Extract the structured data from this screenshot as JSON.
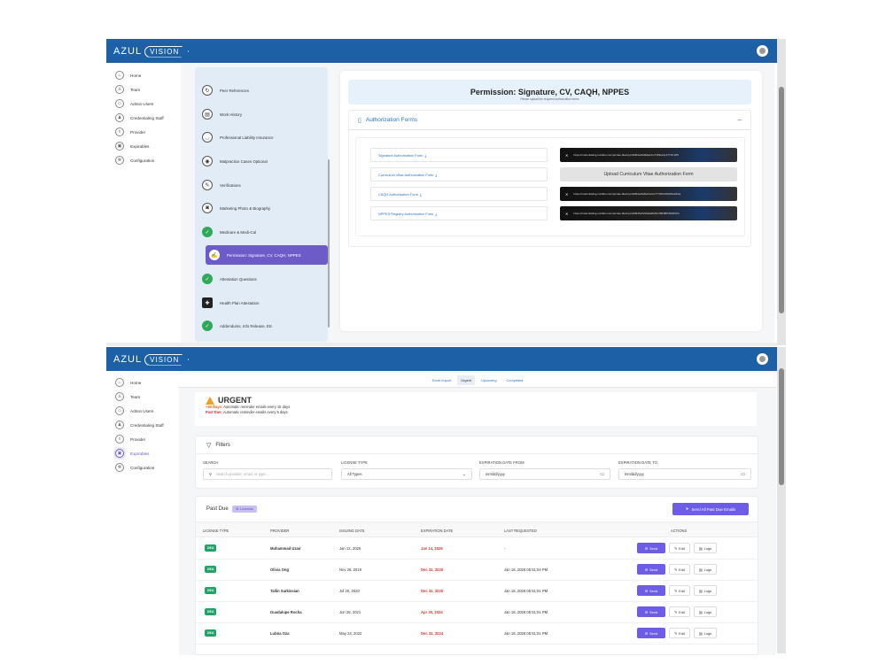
{
  "brand": {
    "azul": "AZUL",
    "vision": "VISION"
  },
  "nav": {
    "items": [
      {
        "label": "Home",
        "icon": "home-icon"
      },
      {
        "label": "Team",
        "icon": "team-icon"
      },
      {
        "label": "Admin Users",
        "icon": "shield-icon"
      },
      {
        "label": "Credentialing Staff",
        "icon": "users-icon"
      },
      {
        "label": "Provider",
        "icon": "provider-icon"
      },
      {
        "label": "Expirables",
        "icon": "expirables-icon"
      },
      {
        "label": "Configuration",
        "icon": "gear-icon"
      }
    ]
  },
  "steps": [
    {
      "label": "Peer References"
    },
    {
      "label": "Work History"
    },
    {
      "label": "Professional Liability Insurance"
    },
    {
      "label": "Malpractice Cases Optional"
    },
    {
      "label": "Verifications"
    },
    {
      "label": "Marketing Photo & Biography"
    },
    {
      "label": "Medicare & Medi-Cal"
    },
    {
      "label": "Permission: Signature, CV, CAQH, NPPES"
    },
    {
      "label": "Attestation Questions"
    },
    {
      "label": "Health Plan Attestation"
    },
    {
      "label": "Addendums, Info Release, Etc"
    }
  ],
  "permission": {
    "title": "Permission: Signature, CV, CAQH, NPPES",
    "subtitle": "Please upload the required authorization forms",
    "section_title": "Authorization Forms",
    "collapse": "–",
    "forms": [
      {
        "label": "Signature Authorization Form",
        "value": "https://credentialing.confidio.com/private-files/xyz/a6f0de49d9da/sCuYWtfe16yJ?716.205"
      },
      {
        "label": "Curriculum Vitae Authorization Form",
        "value": "Upload Curriculum Vitae Authorization Form"
      },
      {
        "label": "CAQH Authorization Form",
        "value": "https://credentialing.confidio.com/private-files/xyz/a6f0de49d0a/YeGC7Y3f%CRb29Gd/4Ga"
      },
      {
        "label": "NPPES Registry Authorization Form",
        "value": "https://credentialing.confidio.com/private-files/xyz/a6f0d6e5c9/0ad2b26c4f9f4852NS9NCh"
      }
    ]
  },
  "tabs": [
    "Excel Import",
    "Urgent",
    "Upcoming",
    "Completed"
  ],
  "urgent": {
    "title": "URGENT",
    "line1_key": "+30 Days:",
    "line1_val": "Automatic reminder emails every 15 days",
    "line2_key": "Past Due:",
    "line2_val": "Automatic reminder emails every 5 days"
  },
  "filters": {
    "title": "Filters",
    "search_label": "SEARCH",
    "search_placeholder": "Search provider, email, or type...",
    "license_label": "LICENSE TYPE",
    "license_value": "All Types",
    "from_label": "EXPIRATION DATE FROM",
    "from_value": "mm/dd/yyyy",
    "to_label": "EXPIRATION DATE TO",
    "to_value": "mm/dd/yyyy"
  },
  "pastdue": {
    "title": "Past Due",
    "count_badge": "31 Licenses",
    "send_all": "Send All Past Due Emails",
    "columns": [
      "LICENSE TYPE",
      "PROVIDER",
      "ISSUING DATE",
      "EXPIRATION DATE",
      "LAST REQUESTED",
      "ACTIONS"
    ],
    "send_label": "Send",
    "edit_label": "Edit",
    "logs_label": "Logs",
    "rows": [
      {
        "type": "DEA",
        "provider": "Muhammad Uzair",
        "issuing": "Jan 12, 2026",
        "expiration": "Jan 14, 2026",
        "last": "-"
      },
      {
        "type": "DEA",
        "provider": "Olivia Ong",
        "issuing": "Nov 26, 2019",
        "expiration": "Dec 31, 2025",
        "last": "Jan 18, 2026 05:51:04 PM"
      },
      {
        "type": "DEA",
        "provider": "Tallin Sarkissian",
        "issuing": "Jul 20, 2020",
        "expiration": "Dec 31, 2025",
        "last": "Jan 18, 2026 05:51:01 PM"
      },
      {
        "type": "DEA",
        "provider": "Guadalupe Rocha",
        "issuing": "Jun 28, 2021",
        "expiration": "Apr 30, 2024",
        "last": "Jan 18, 2026 05:51:01 PM"
      },
      {
        "type": "DEA",
        "provider": "Lubna Oza",
        "issuing": "May 24, 2022",
        "expiration": "Dec 31, 2024",
        "last": "Jan 18, 2026 05:51:01 PM"
      }
    ]
  }
}
